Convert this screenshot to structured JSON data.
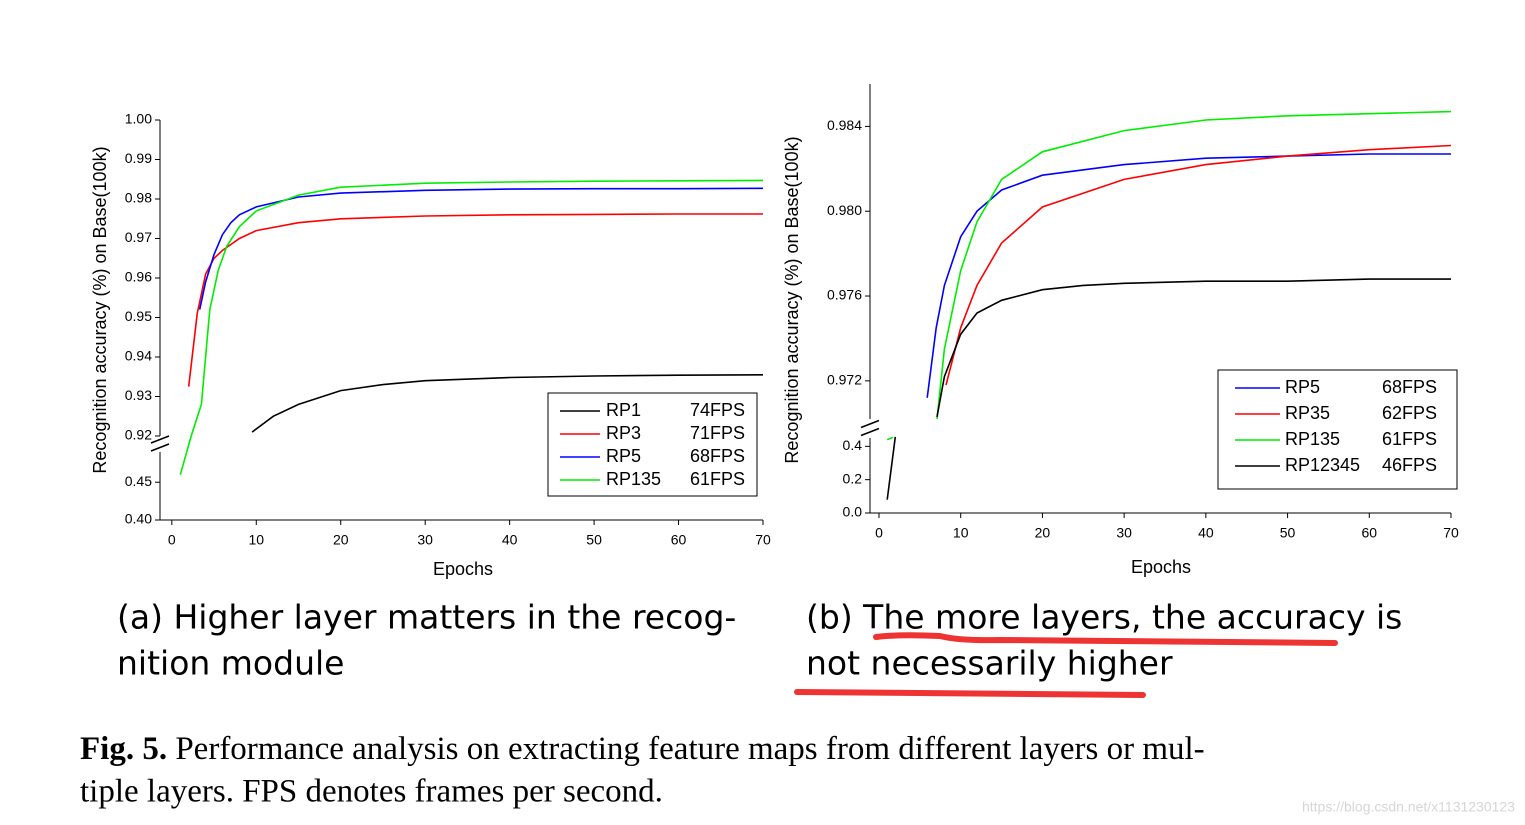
{
  "chart_data": [
    {
      "type": "line",
      "x_label": "Epochs",
      "y_label": "Recognition accuracy (%) on Base(100k)",
      "xlim": [
        -1.4,
        70
      ],
      "xticks": [
        0,
        10,
        20,
        30,
        40,
        50,
        60,
        70
      ],
      "ylim": [
        0.92,
        1.0
      ],
      "yticks": [
        0.92,
        0.93,
        0.94,
        0.95,
        0.96,
        0.97,
        0.98,
        0.99,
        {
          "value": 1.0,
          "label": "1.00"
        }
      ],
      "y_break": {
        "ylim": [
          0.4,
          0.49
        ],
        "yticks": [
          {
            "value": 0.4,
            "label": "0.40"
          },
          0.45
        ]
      },
      "legend": "lower right",
      "series": [
        {
          "name": "RP1",
          "fps": "74FPS",
          "color": "#000000",
          "x": [
            9.5,
            12,
            15,
            20,
            25,
            30,
            40,
            50,
            60,
            70
          ],
          "values": [
            0.921,
            0.925,
            0.928,
            0.9315,
            0.933,
            0.934,
            0.9348,
            0.9352,
            0.9354,
            0.9355
          ]
        },
        {
          "name": "RP3",
          "fps": "71FPS",
          "color": "#ff0000",
          "x": [
            2,
            3,
            4,
            5,
            6,
            8,
            10,
            15,
            20,
            30,
            40,
            50,
            60,
            70
          ],
          "values": [
            0.9325,
            0.951,
            0.961,
            0.965,
            0.967,
            0.97,
            0.972,
            0.974,
            0.975,
            0.9757,
            0.976,
            0.9761,
            0.9762,
            0.9762
          ]
        },
        {
          "name": "RP5",
          "fps": "68FPS",
          "color": "#0000ff",
          "x": [
            3.3,
            4,
            5,
            6,
            7,
            8,
            10,
            15,
            20,
            30,
            40,
            50,
            60,
            70
          ],
          "values": [
            0.952,
            0.959,
            0.966,
            0.971,
            0.974,
            0.976,
            0.978,
            0.9805,
            0.9815,
            0.9822,
            0.9825,
            0.9826,
            0.9826,
            0.9827
          ]
        },
        {
          "name": "RP135",
          "fps": "61FPS",
          "color": "#00ee00",
          "x": [
            1,
            2.3,
            3.5,
            4.5,
            5.5,
            6.5,
            8,
            10,
            15,
            20,
            30,
            40,
            50,
            60,
            70
          ],
          "values": [
            0.46,
            0.92,
            0.928,
            0.952,
            0.962,
            0.968,
            0.973,
            0.977,
            0.981,
            0.983,
            0.984,
            0.9843,
            0.9845,
            0.9846,
            0.9847
          ]
        }
      ]
    },
    {
      "type": "line",
      "x_label": "Epochs",
      "y_label": "Recognition accuracy (%) on Base(100k)",
      "xlim": [
        -1.1,
        70
      ],
      "xticks": [
        0,
        10,
        20,
        30,
        40,
        50,
        60,
        70
      ],
      "ylim": [
        0.9702,
        0.986
      ],
      "yticks": [
        0.972,
        0.976,
        {
          "value": 0.98,
          "label": "0.980"
        },
        0.984
      ],
      "y_break": {
        "ylim": [
          0,
          0.45
        ],
        "yticks": [
          {
            "value": 0,
            "label": "0.0"
          },
          0.2,
          0.4
        ]
      },
      "legend": "lower right",
      "series": [
        {
          "name": "RP5",
          "fps": "68FPS",
          "color": "#0000ff",
          "x": [
            5.9,
            7,
            8,
            10,
            12,
            15,
            20,
            30,
            40,
            50,
            60,
            70
          ],
          "values": [
            0.9712,
            0.9745,
            0.9765,
            0.9788,
            0.98,
            0.981,
            0.9817,
            0.9822,
            0.9825,
            0.9826,
            0.9827,
            0.9827
          ]
        },
        {
          "name": "RP35",
          "fps": "62FPS",
          "color": "#ff0000",
          "x": [
            8.2,
            10,
            12,
            15,
            20,
            30,
            40,
            50,
            60,
            70
          ],
          "values": [
            0.9718,
            0.9745,
            0.9765,
            0.9785,
            0.9802,
            0.9815,
            0.9822,
            0.9826,
            0.9829,
            0.9831
          ]
        },
        {
          "name": "RP135",
          "fps": "61FPS",
          "color": "#00ee00",
          "x": [
            1,
            1.7,
            4,
            7.1,
            8,
            10,
            12,
            15,
            20,
            30,
            40,
            50,
            60,
            70
          ],
          "values": [
            0.44,
            0.47,
            null,
            0.97,
            0.9735,
            0.9772,
            0.9795,
            0.9815,
            0.9828,
            0.9838,
            0.9843,
            0.9845,
            0.9846,
            0.9847
          ]
        },
        {
          "name": "RP12345",
          "fps": "46FPS",
          "color": "#000000",
          "x": [
            1,
            2,
            4,
            7.1,
            8,
            10,
            12,
            15,
            20,
            25,
            30,
            40,
            50,
            60,
            70
          ],
          "values": [
            0.08,
            0.48,
            null,
            0.9703,
            0.9722,
            0.9742,
            0.9752,
            0.9758,
            0.9763,
            0.9765,
            0.9766,
            0.9767,
            0.9767,
            0.9768,
            0.9768
          ]
        }
      ]
    }
  ],
  "captions": [
    [
      "(a) Higher layer matters in the recog-",
      "nition module"
    ],
    [
      "(b) The more layers, the accuracy is",
      "not necessarily higher"
    ]
  ],
  "figure_caption": {
    "label": "Fig. 5.",
    "lines": [
      " Performance analysis on extracting feature maps from different layers or mul-",
      "tiple layers. FPS denotes frames per second."
    ]
  },
  "watermark": "https://blog.csdn.net/x1131230123"
}
